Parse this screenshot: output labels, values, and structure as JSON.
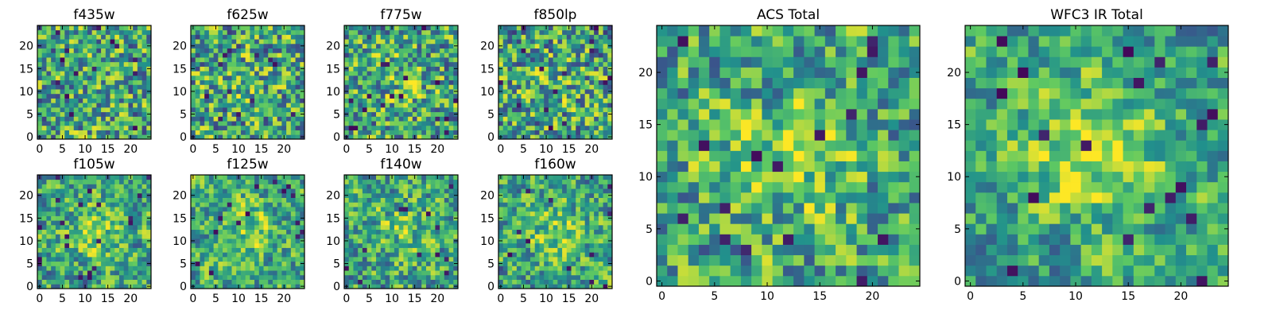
{
  "figure": {
    "colormap": "viridis",
    "colors": [
      "#440154",
      "#3b528b",
      "#21918c",
      "#5ec962",
      "#fde725"
    ]
  },
  "chart_data": [
    {
      "type": "heatmap",
      "title": "f435w",
      "grid": [
        25,
        25
      ],
      "xlim": [
        0,
        24
      ],
      "ylim": [
        0,
        24
      ],
      "xticks": [
        0,
        5,
        10,
        15,
        20
      ],
      "yticks": [
        0,
        5,
        10,
        15,
        20
      ],
      "seed": 11,
      "center_boost": 0.05,
      "smooth": 0.1
    },
    {
      "type": "heatmap",
      "title": "f625w",
      "grid": [
        25,
        25
      ],
      "xlim": [
        0,
        24
      ],
      "ylim": [
        0,
        24
      ],
      "xticks": [
        0,
        5,
        10,
        15,
        20
      ],
      "yticks": [
        0,
        5,
        10,
        15,
        20
      ],
      "seed": 23,
      "center_boost": 0.06,
      "smooth": 0.1
    },
    {
      "type": "heatmap",
      "title": "f775w",
      "grid": [
        25,
        25
      ],
      "xlim": [
        0,
        24
      ],
      "ylim": [
        0,
        24
      ],
      "xticks": [
        0,
        5,
        10,
        15,
        20
      ],
      "yticks": [
        0,
        5,
        10,
        15,
        20
      ],
      "seed": 37,
      "center_boost": 0.12,
      "smooth": 0.12
    },
    {
      "type": "heatmap",
      "title": "f850lp",
      "grid": [
        25,
        25
      ],
      "xlim": [
        0,
        24
      ],
      "ylim": [
        0,
        24
      ],
      "xticks": [
        0,
        5,
        10,
        15,
        20
      ],
      "yticks": [
        0,
        5,
        10,
        15,
        20
      ],
      "seed": 41,
      "center_boost": 0.06,
      "smooth": 0.1
    },
    {
      "type": "heatmap",
      "title": "f105w",
      "grid": [
        25,
        25
      ],
      "xlim": [
        0,
        24
      ],
      "ylim": [
        0,
        24
      ],
      "xticks": [
        0,
        5,
        10,
        15,
        20
      ],
      "yticks": [
        0,
        5,
        10,
        15,
        20
      ],
      "seed": 53,
      "center_boost": 0.22,
      "smooth": 0.35
    },
    {
      "type": "heatmap",
      "title": "f125w",
      "grid": [
        25,
        25
      ],
      "xlim": [
        0,
        24
      ],
      "ylim": [
        0,
        24
      ],
      "xticks": [
        0,
        5,
        10,
        15,
        20
      ],
      "yticks": [
        0,
        5,
        10,
        15,
        20
      ],
      "seed": 67,
      "center_boost": 0.2,
      "smooth": 0.35
    },
    {
      "type": "heatmap",
      "title": "f140w",
      "grid": [
        25,
        25
      ],
      "xlim": [
        0,
        24
      ],
      "ylim": [
        0,
        24
      ],
      "xticks": [
        0,
        5,
        10,
        15,
        20
      ],
      "yticks": [
        0,
        5,
        10,
        15,
        20
      ],
      "seed": 79,
      "center_boost": 0.15,
      "smooth": 0.3
    },
    {
      "type": "heatmap",
      "title": "f160w",
      "grid": [
        25,
        25
      ],
      "xlim": [
        0,
        24
      ],
      "ylim": [
        0,
        24
      ],
      "xticks": [
        0,
        5,
        10,
        15,
        20
      ],
      "yticks": [
        0,
        5,
        10,
        15,
        20
      ],
      "seed": 83,
      "center_boost": 0.22,
      "smooth": 0.35
    },
    {
      "type": "heatmap",
      "title": "ACS Total",
      "grid": [
        25,
        25
      ],
      "xlim": [
        0,
        24
      ],
      "ylim": [
        0,
        24
      ],
      "xticks": [
        0,
        5,
        10,
        15,
        20
      ],
      "yticks": [
        0,
        5,
        10,
        15,
        20
      ],
      "seed": 97,
      "center_boost": 0.25,
      "smooth": 0.25
    },
    {
      "type": "heatmap",
      "title": "WFC3 IR Total",
      "grid": [
        25,
        25
      ],
      "xlim": [
        0,
        24
      ],
      "ylim": [
        0,
        24
      ],
      "xticks": [
        0,
        5,
        10,
        15,
        20
      ],
      "yticks": [
        0,
        5,
        10,
        15,
        20
      ],
      "seed": 103,
      "center_boost": 0.35,
      "smooth": 0.45
    }
  ]
}
